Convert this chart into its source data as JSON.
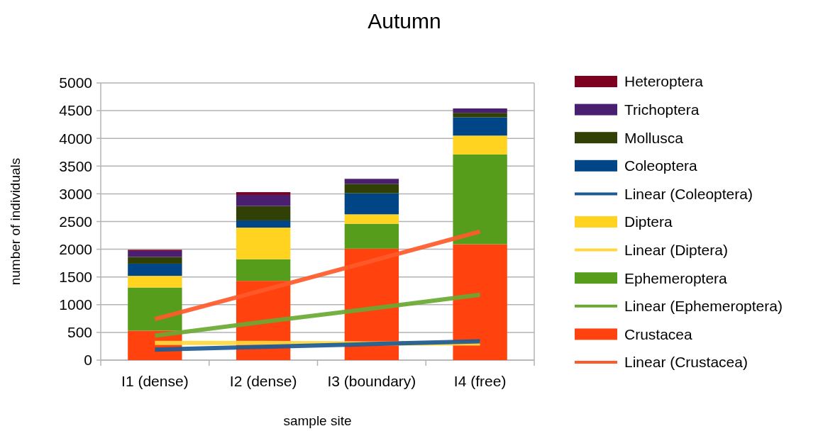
{
  "chart_data": {
    "type": "bar",
    "title": "Autumn",
    "xlabel": "sample site",
    "ylabel": "number of individuals",
    "categories": [
      "I1 (dense)",
      "I2 (dense)",
      "I3 (boundary)",
      "I4 (free)"
    ],
    "stacked": true,
    "ylim": [
      0,
      5000
    ],
    "yticks": [
      0,
      500,
      1000,
      1500,
      2000,
      2500,
      3000,
      3500,
      4000,
      4500,
      5000
    ],
    "grid": "y",
    "legend": "right",
    "series": [
      {
        "name": "Linear (Crustacea)",
        "type": "line",
        "color": "#ff5a2a",
        "values": [
          740,
          1260,
          1790,
          2320
        ]
      },
      {
        "name": "Crustacea",
        "color": "#ff420e",
        "values": [
          530,
          1430,
          2010,
          2090
        ]
      },
      {
        "name": "Linear (Ephemeroptera)",
        "type": "line",
        "color": "#6aa832",
        "values": [
          440,
          690,
          930,
          1180
        ]
      },
      {
        "name": "Ephemeroptera",
        "color": "#579d1c",
        "values": [
          780,
          390,
          450,
          1620
        ]
      },
      {
        "name": "Linear (Diptera)",
        "type": "line",
        "color": "#ffd840",
        "values": [
          310,
          310,
          300,
          300
        ]
      },
      {
        "name": "Diptera",
        "color": "#ffd320",
        "values": [
          210,
          570,
          170,
          340
        ]
      },
      {
        "name": "Linear (Coleoptera)",
        "type": "line",
        "color": "#1c5b96",
        "values": [
          190,
          240,
          290,
          340
        ]
      },
      {
        "name": "Coleoptera",
        "color": "#004586",
        "values": [
          220,
          130,
          380,
          330
        ]
      },
      {
        "name": "Mollusca",
        "color": "#314004",
        "values": [
          120,
          260,
          170,
          80
        ]
      },
      {
        "name": "Trichoptera",
        "color": "#4b1f6f",
        "values": [
          110,
          200,
          90,
          80
        ]
      },
      {
        "name": "Heteroptera",
        "color": "#7e0021",
        "values": [
          20,
          50,
          0,
          0
        ]
      }
    ]
  }
}
